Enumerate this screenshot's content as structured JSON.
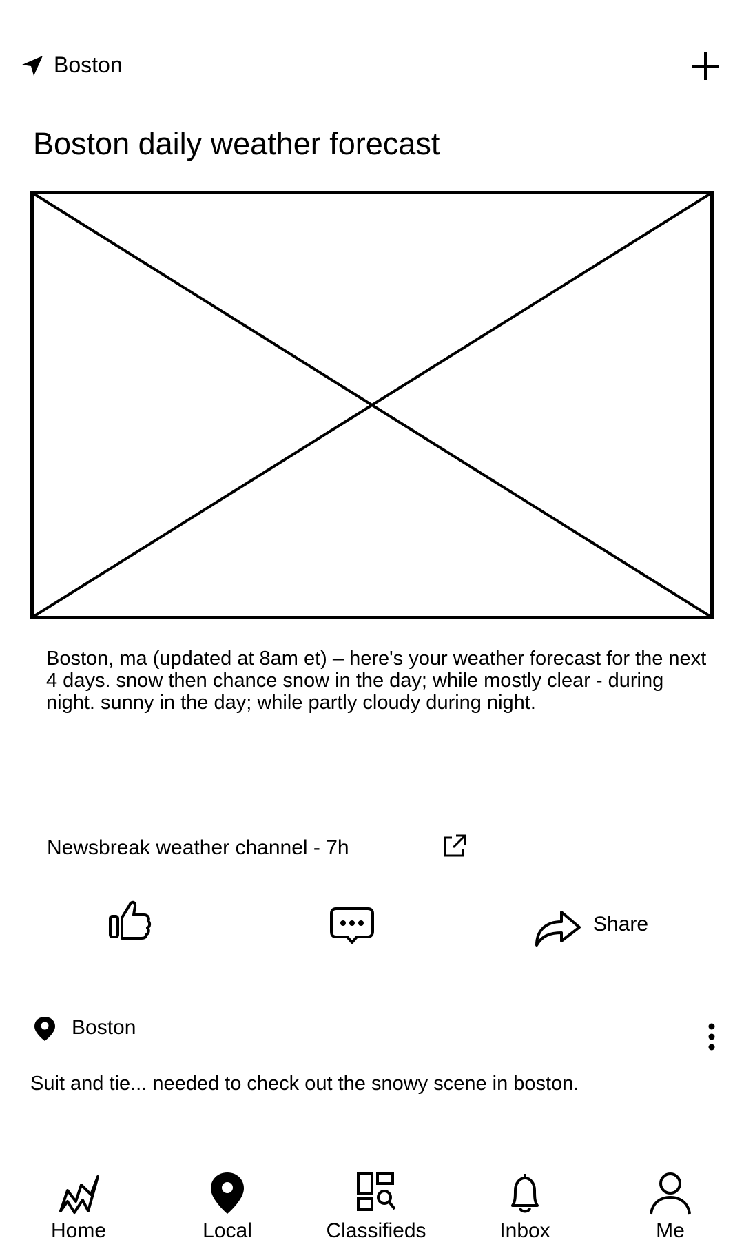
{
  "header": {
    "location": "Boston"
  },
  "article": {
    "title": "Boston daily weather forecast",
    "body": "Boston, ma (updated at 8am et) – here's your weather forecast for the next 4 days. snow then chance snow in the day; while mostly clear - during night. sunny in the day; while partly cloudy during night.",
    "source": "Newsbreak weather channel - 7h"
  },
  "actions": {
    "share_label": "Share"
  },
  "post": {
    "location": "Boston",
    "text": "Suit and tie... needed to check out the snowy scene in boston."
  },
  "nav": {
    "items": [
      {
        "label": "Home",
        "icon": "home-icon"
      },
      {
        "label": "Local",
        "icon": "location-pin-icon"
      },
      {
        "label": "Classifieds",
        "icon": "classifieds-icon"
      },
      {
        "label": "Inbox",
        "icon": "bell-icon"
      },
      {
        "label": "Me",
        "icon": "person-icon"
      }
    ]
  }
}
